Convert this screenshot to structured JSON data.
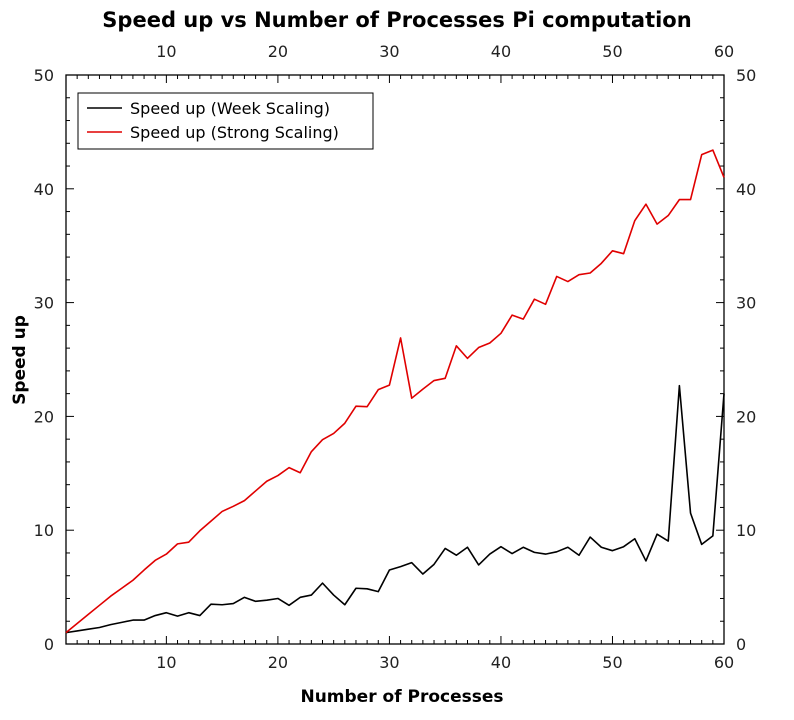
{
  "chart_data": {
    "type": "line",
    "title": "Speed up vs Number of Processes Pi computation",
    "xlabel": "Number of Processes",
    "ylabel": "Speed up",
    "xlim": [
      1,
      60
    ],
    "ylim": [
      0,
      50
    ],
    "x_ticks": [
      10,
      20,
      30,
      40,
      50,
      60
    ],
    "y_ticks": [
      0,
      10,
      20,
      30,
      40,
      50
    ],
    "grid": false,
    "legend_position": "top-left",
    "x": [
      1,
      2,
      3,
      4,
      5,
      6,
      7,
      8,
      9,
      10,
      11,
      12,
      13,
      14,
      15,
      16,
      17,
      18,
      19,
      20,
      21,
      22,
      23,
      24,
      25,
      26,
      27,
      28,
      29,
      30,
      31,
      32,
      33,
      34,
      35,
      36,
      37,
      38,
      39,
      40,
      41,
      42,
      43,
      44,
      45,
      46,
      47,
      48,
      49,
      50,
      51,
      52,
      53,
      54,
      55,
      56,
      57,
      58,
      59,
      60
    ],
    "series": [
      {
        "name": "Speed up (Week Scaling)",
        "color": "#000000",
        "values": [
          1.0,
          1.15,
          1.3,
          1.45,
          1.7,
          1.9,
          2.1,
          2.1,
          2.5,
          2.75,
          2.45,
          2.75,
          2.5,
          3.5,
          3.45,
          3.55,
          4.1,
          3.75,
          3.85,
          4.0,
          3.4,
          4.1,
          4.3,
          5.35,
          4.3,
          3.45,
          4.9,
          4.85,
          4.6,
          6.5,
          6.8,
          7.15,
          6.15,
          7.0,
          8.4,
          7.8,
          8.5,
          6.95,
          7.9,
          8.55,
          7.95,
          8.5,
          8.05,
          7.9,
          8.1,
          8.5,
          7.8,
          9.4,
          8.5,
          8.2,
          8.55,
          9.25,
          7.3,
          9.65,
          9.05,
          22.7,
          11.5,
          8.75,
          9.5,
          22.0
        ]
      },
      {
        "name": "Speed up (Strong Scaling)",
        "color": "#e00000",
        "values": [
          1.0,
          1.8,
          2.6,
          3.4,
          4.2,
          4.9,
          5.6,
          6.5,
          7.35,
          7.9,
          8.8,
          8.95,
          9.95,
          10.8,
          11.65,
          12.1,
          12.6,
          13.45,
          14.3,
          14.8,
          15.5,
          15.05,
          16.9,
          17.95,
          18.5,
          19.4,
          20.9,
          20.85,
          22.35,
          22.75,
          26.9,
          21.6,
          22.4,
          23.15,
          23.35,
          26.2,
          25.1,
          26.05,
          26.45,
          27.3,
          28.9,
          28.55,
          30.3,
          29.85,
          32.3,
          31.85,
          32.45,
          32.6,
          33.45,
          34.55,
          34.3,
          37.2,
          38.65,
          36.9,
          37.65,
          39.05,
          39.05,
          43.0,
          43.4,
          41.0
        ]
      }
    ],
    "series_overrides_note": ""
  }
}
